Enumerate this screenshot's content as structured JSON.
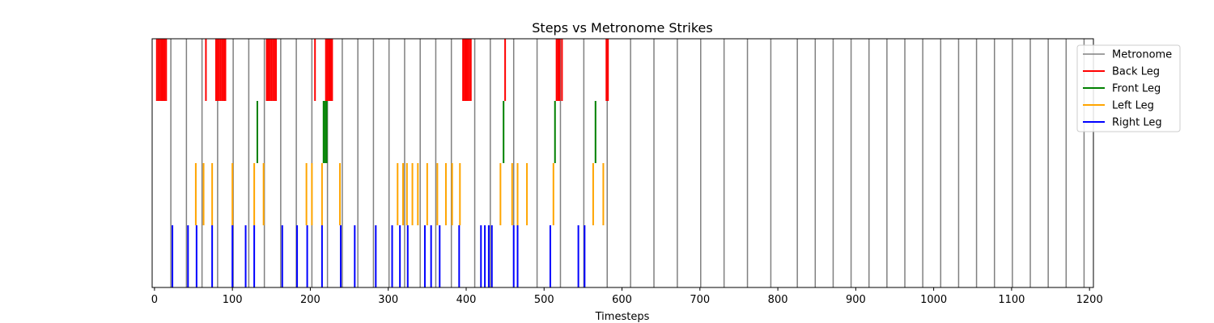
{
  "chart_data": {
    "type": "event-plot",
    "title": "Steps vs Metronome Strikes",
    "xlabel": "Timesteps",
    "ylabel": "",
    "xlim": [
      -3,
      1205
    ],
    "x_ticks": [
      0,
      100,
      200,
      300,
      400,
      500,
      600,
      700,
      800,
      900,
      1000,
      1100,
      1200
    ],
    "grid": false,
    "legend_position": "upper right, outside plot",
    "metronome": {
      "name": "Metronome",
      "color": "#808080",
      "x": [
        21,
        41,
        61,
        81,
        101,
        121,
        141,
        162,
        182,
        202,
        222,
        241,
        261,
        281,
        301,
        321,
        341,
        361,
        381,
        411,
        431,
        461,
        491,
        521,
        551,
        581,
        611,
        641,
        671,
        701,
        731,
        761,
        791,
        825,
        848,
        871,
        894,
        917,
        940,
        963,
        986,
        1009,
        1032,
        1055,
        1078,
        1101,
        1124,
        1147,
        1170,
        1193
      ]
    },
    "series": [
      {
        "name": "Back Leg",
        "color": "#ff0000",
        "x": [
          3,
          5,
          7,
          9,
          11,
          13,
          15,
          66,
          79,
          81,
          83,
          85,
          87,
          89,
          91,
          144,
          146,
          148,
          150,
          152,
          154,
          156,
          206,
          220,
          222,
          224,
          226,
          228,
          396,
          398,
          400,
          402,
          404,
          406,
          450,
          516,
          518,
          520,
          523,
          580,
          582
        ]
      },
      {
        "name": "Front Leg",
        "color": "#008000",
        "x": [
          132,
          217,
          219,
          221,
          448,
          514,
          566
        ]
      },
      {
        "name": "Left Leg",
        "color": "#ffa500",
        "x": [
          53,
          63,
          74,
          100,
          128,
          140,
          195,
          202,
          215,
          238,
          312,
          319,
          324,
          331,
          338,
          350,
          363,
          374,
          382,
          392,
          444,
          459,
          466,
          478,
          512,
          563,
          576
        ]
      },
      {
        "name": "Right Leg",
        "color": "#0000ff",
        "x": [
          23,
          43,
          54,
          74,
          100,
          117,
          128,
          164,
          183,
          196,
          215,
          239,
          257,
          284,
          305,
          315,
          325,
          347,
          355,
          366,
          391,
          419,
          424,
          429,
          433,
          461,
          466,
          508,
          544,
          552
        ]
      }
    ]
  }
}
